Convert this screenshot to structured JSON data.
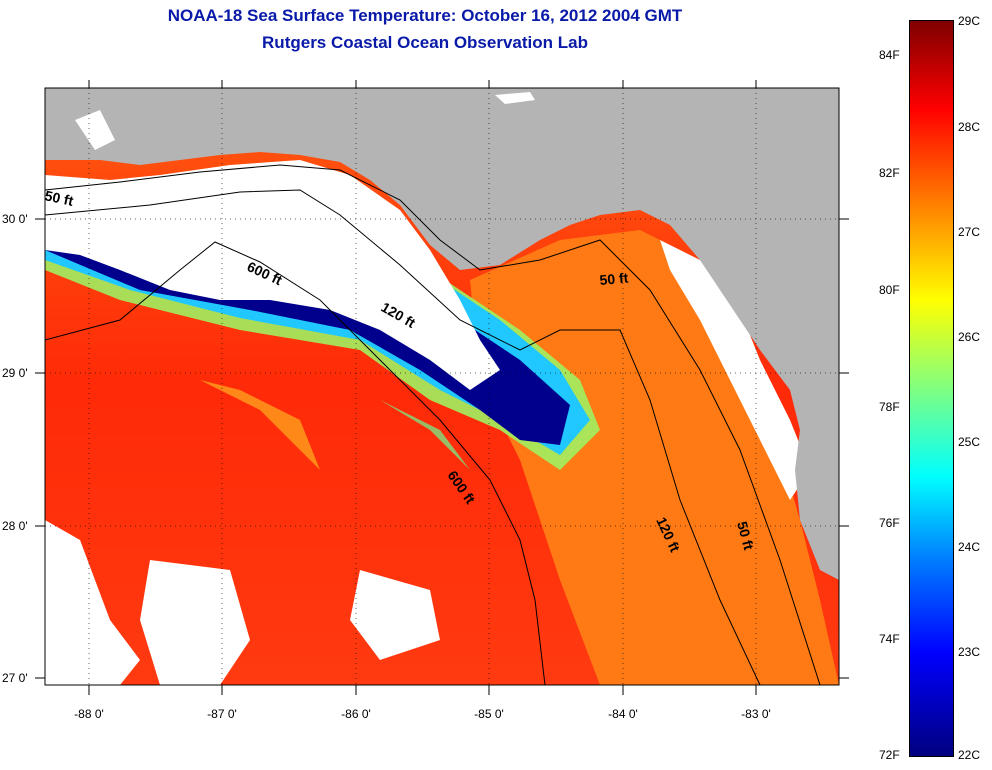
{
  "title_line1": "NOAA-18 Sea Surface Temperature:  October 16, 2012 2004 GMT",
  "title_line2": "Rutgers Coastal Ocean Observation Lab",
  "map": {
    "lon_ticks": [
      "-88 0'",
      "-87 0'",
      "-86 0'",
      "-85 0'",
      "-84 0'",
      "-83 0'"
    ],
    "lat_ticks": [
      "30 0'",
      "29 0'",
      "28 0'",
      "27 0'"
    ],
    "contour_labels": {
      "c50a": "50 ft",
      "c600a": "600 ft",
      "c120a": "120 ft",
      "c50b": "50 ft",
      "c600b": "600 ft",
      "c120b": "120 ft",
      "c50c": "50 ft"
    },
    "colors": {
      "land": "#b4b4b4",
      "cloud": "#ffffff",
      "warm": "#ff3a10",
      "cold": "#00008c"
    }
  },
  "colorbar": {
    "fahrenheit_labels": [
      "84F",
      "82F",
      "80F",
      "78F",
      "76F",
      "74F",
      "72F"
    ],
    "celsius_labels": [
      "29C",
      "28C",
      "27C",
      "26C",
      "25C",
      "24C",
      "23C",
      "22C"
    ],
    "min_c": 22,
    "max_c": 29,
    "min_f": 72,
    "max_f": 84
  }
}
